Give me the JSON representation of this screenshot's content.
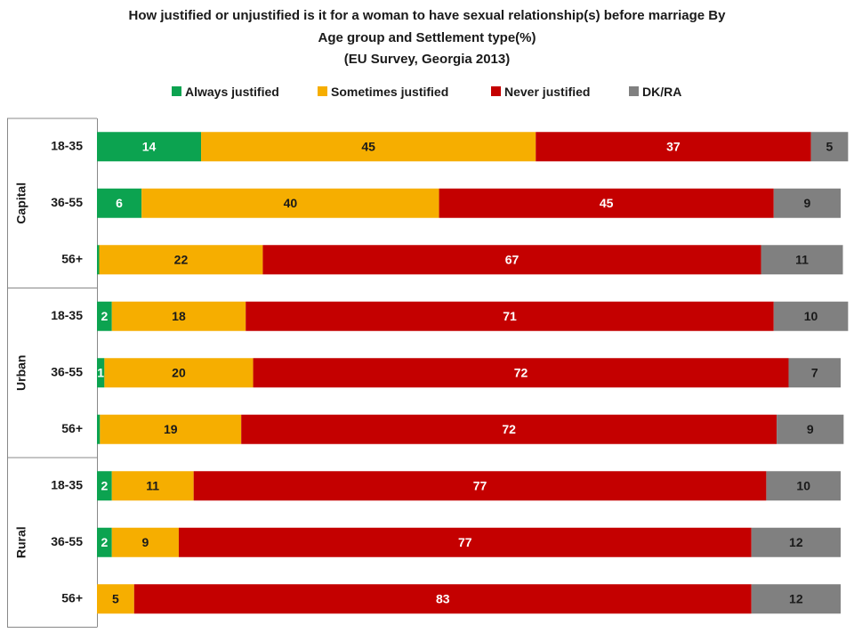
{
  "chart_data": {
    "type": "bar",
    "stacked": true,
    "orientation": "horizontal",
    "title_lines": [
      "How justified or unjustified is it for a woman to have sexual relationship(s) before marriage By",
      "Age group and Settlement type(%)",
      "(EU Survey, Georgia 2013)"
    ],
    "xlim": [
      0,
      100
    ],
    "legend_position": "top",
    "series": [
      {
        "name": "Always justified",
        "color": "#0ca350",
        "label_color": "#ffffff"
      },
      {
        "name": "Sometimes justified",
        "color": "#f6ae00",
        "label_color": "#1a1a1a"
      },
      {
        "name": "Never justified",
        "color": "#c40000",
        "label_color": "#ffffff"
      },
      {
        "name": "DK/RA",
        "color": "#808080",
        "label_color": "#1a1a1a"
      }
    ],
    "groups": [
      {
        "name": "Capital",
        "rows": [
          {
            "age": "18-35",
            "values": [
              14,
              45,
              37,
              5
            ],
            "labels": [
              "14",
              "45",
              "37",
              "5"
            ]
          },
          {
            "age": "36-55",
            "values": [
              6,
              40,
              45,
              9
            ],
            "labels": [
              "6",
              "40",
              "45",
              "9"
            ]
          },
          {
            "age": "56+",
            "values": [
              0.3,
              22,
              67,
              11
            ],
            "labels": [
              "",
              "22",
              "67",
              "11"
            ]
          }
        ]
      },
      {
        "name": "Urban",
        "rows": [
          {
            "age": "18-35",
            "values": [
              2,
              18,
              71,
              10
            ],
            "labels": [
              "2",
              "18",
              "71",
              "10"
            ]
          },
          {
            "age": "36-55",
            "values": [
              1,
              20,
              72,
              7
            ],
            "labels": [
              "1",
              "20",
              "72",
              "7"
            ]
          },
          {
            "age": "56+",
            "values": [
              0.4,
              19,
              72,
              9
            ],
            "labels": [
              "",
              "19",
              "72",
              "9"
            ]
          }
        ]
      },
      {
        "name": "Rural",
        "rows": [
          {
            "age": "18-35",
            "values": [
              2,
              11,
              77,
              10
            ],
            "labels": [
              "2",
              "11",
              "77",
              "10"
            ]
          },
          {
            "age": "36-55",
            "values": [
              2,
              9,
              77,
              12
            ],
            "labels": [
              "2",
              "9",
              "77",
              "12"
            ]
          },
          {
            "age": "56+",
            "values": [
              0,
              5,
              83,
              12
            ],
            "labels": [
              "",
              "5",
              "83",
              "12"
            ]
          }
        ]
      }
    ]
  }
}
